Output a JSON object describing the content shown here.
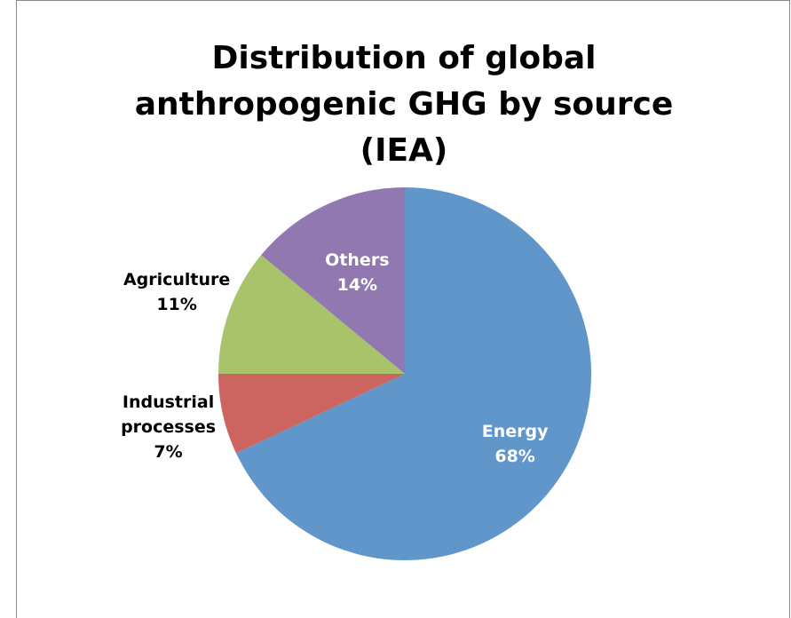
{
  "chart_data": {
    "type": "pie",
    "title": "Distribution of global anthropogenic GHG by source (IEA)",
    "categories": [
      "Energy",
      "Industrial processes",
      "Agriculture",
      "Others"
    ],
    "values": [
      68,
      7,
      11,
      14
    ],
    "value_labels": [
      "68%",
      "7%",
      "11%",
      "14%"
    ],
    "colors": [
      "#6096c9",
      "#cc6560",
      "#a8c36a",
      "#9178b1"
    ]
  }
}
